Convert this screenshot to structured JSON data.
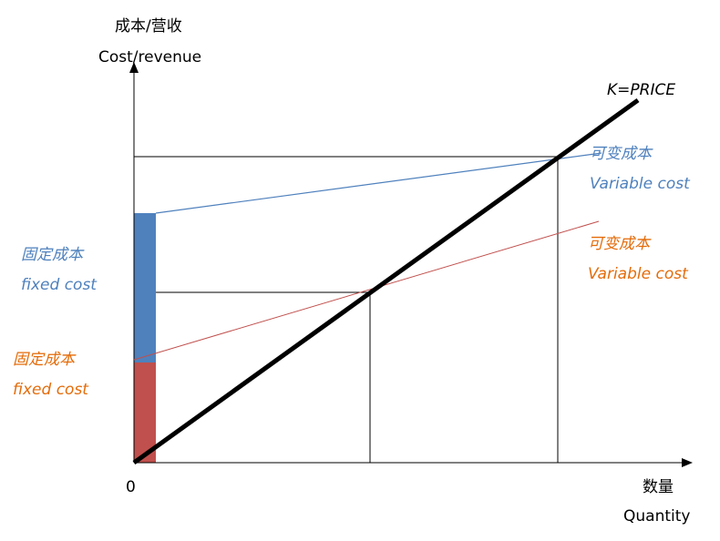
{
  "y_axis": {
    "label_zh": "成本/营收",
    "label_en": "Cost/revenue"
  },
  "x_axis": {
    "label_zh": "数量",
    "label_en": "Quantity",
    "origin": "0"
  },
  "price_line": {
    "label": "K=PRICE",
    "color": "#000000"
  },
  "upper_variable_cost": {
    "label_zh": "可变成本",
    "label_en": "Variable cost",
    "color": "#4f81bd"
  },
  "lower_variable_cost": {
    "label_zh": "可变成本",
    "label_en": "Variable cost",
    "color": "#c0504d",
    "text_color": "#e46c0a"
  },
  "upper_fixed_cost": {
    "label_zh": "固定成本",
    "label_en": "fixed cost",
    "color": "#4f81bd"
  },
  "lower_fixed_cost": {
    "label_zh": "固定成本",
    "label_en": "fixed cost",
    "color": "#c0504d",
    "text_color": "#e46c0a"
  }
}
